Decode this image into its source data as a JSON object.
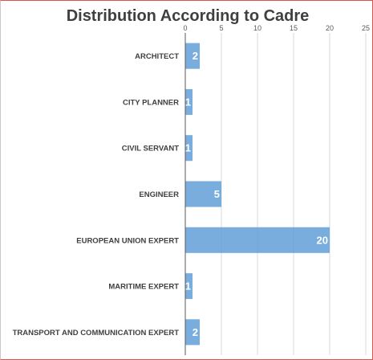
{
  "chart_data": {
    "type": "bar",
    "orientation": "horizontal",
    "title": "Distribution According to Cadre",
    "categories": [
      "ARCHITECT",
      "CITY PLANNER",
      "CIVIL SERVANT",
      "ENGINEER",
      "EUROPEAN UNION EXPERT",
      "MARITIME EXPERT",
      "TRANSPORT AND COMMUNICATION EXPERT"
    ],
    "values": [
      2,
      1,
      1,
      5,
      20,
      1,
      2
    ],
    "xlim": [
      0,
      25
    ],
    "xticks": [
      0,
      5,
      10,
      15,
      20,
      25
    ],
    "x_axis_position": "top",
    "grid": true,
    "legend": "none",
    "data_labels": true,
    "bar_color": "#5b9bd5",
    "bar_opacity": 0.82
  }
}
